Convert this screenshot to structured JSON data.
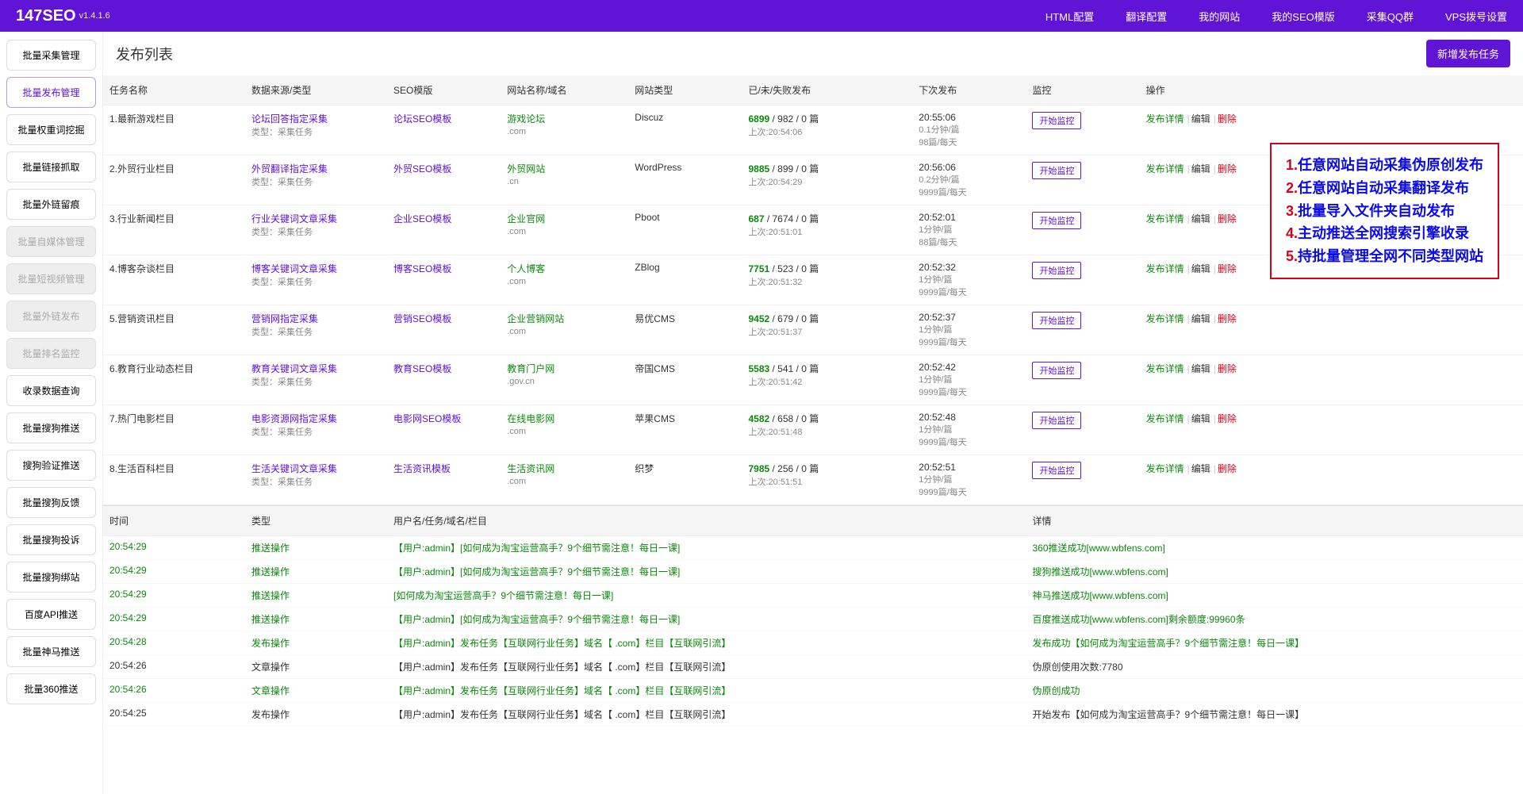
{
  "header": {
    "logo": "147SEO",
    "version": "v1.4.1.6",
    "nav": [
      "HTML配置",
      "翻译配置",
      "我的网站",
      "我的SEO模版",
      "采集QQ群",
      "VPS拨号设置"
    ]
  },
  "sidebar": [
    {
      "label": "批量采集管理",
      "state": ""
    },
    {
      "label": "批量发布管理",
      "state": "active"
    },
    {
      "label": "批量权重词挖掘",
      "state": ""
    },
    {
      "label": "批量链接抓取",
      "state": ""
    },
    {
      "label": "批量外链留痕",
      "state": ""
    },
    {
      "label": "批量自媒体管理",
      "state": "disabled"
    },
    {
      "label": "批量短视频管理",
      "state": "disabled"
    },
    {
      "label": "批量外链发布",
      "state": "disabled"
    },
    {
      "label": "批量排名监控",
      "state": "disabled"
    },
    {
      "label": "收录数据查询",
      "state": ""
    },
    {
      "label": "批量搜狗推送",
      "state": ""
    },
    {
      "label": "搜狗验证推送",
      "state": ""
    },
    {
      "label": "批量搜狗反馈",
      "state": ""
    },
    {
      "label": "批量搜狗投诉",
      "state": ""
    },
    {
      "label": "批量搜狗绑站",
      "state": ""
    },
    {
      "label": "百度API推送",
      "state": ""
    },
    {
      "label": "批量神马推送",
      "state": ""
    },
    {
      "label": "批量360推送",
      "state": ""
    }
  ],
  "page": {
    "title": "发布列表",
    "add_btn": "新增发布任务"
  },
  "taskTable": {
    "headers": [
      "任务名称",
      "数据来源/类型",
      "SEO模版",
      "网站名称/域名",
      "网站类型",
      "已/未/失败发布",
      "下次发布",
      "监控",
      "操作"
    ],
    "mon_label": "开始监控",
    "ops": {
      "detail": "发布详情",
      "edit": "编辑",
      "del": "删除"
    },
    "type_prefix": "类型：采集任务",
    "last_prefix": "上次:",
    "rows": [
      {
        "idx": "1",
        "name": "最新游戏栏目",
        "src": "论坛回答指定采集",
        "tpl": "论坛SEO模板",
        "site": "游戏论坛",
        "domain": ".com",
        "cms": "Discuz",
        "p1": "6899",
        "p2": "982",
        "p3": "0",
        "next": "20:55:06",
        "f1": "0.1分钟/篇",
        "f2": "98篇/每天",
        "last": "20:54:06"
      },
      {
        "idx": "2",
        "name": "外贸行业栏目",
        "src": "外贸翻译指定采集",
        "tpl": "外贸SEO模板",
        "site": "外贸网站",
        "domain": ".cn",
        "cms": "WordPress",
        "p1": "9885",
        "p2": "899",
        "p3": "0",
        "next": "20:56:06",
        "f1": "0.2分钟/篇",
        "f2": "9999篇/每天",
        "last": "20:54:29"
      },
      {
        "idx": "3",
        "name": "行业新闻栏目",
        "src": "行业关键词文章采集",
        "tpl": "企业SEO模板",
        "site": "企业官网",
        "domain": ".com",
        "cms": "Pboot",
        "p1": "687",
        "p2": "7674",
        "p3": "0",
        "next": "20:52:01",
        "f1": "1分钟/篇",
        "f2": "88篇/每天",
        "last": "20:51:01"
      },
      {
        "idx": "4",
        "name": "博客杂谈栏目",
        "src": "博客关键词文章采集",
        "tpl": "博客SEO模板",
        "site": "个人博客",
        "domain": ".com",
        "cms": "ZBlog",
        "p1": "7751",
        "p2": "523",
        "p3": "0",
        "next": "20:52:32",
        "f1": "1分钟/篇",
        "f2": "9999篇/每天",
        "last": "20:51:32"
      },
      {
        "idx": "5",
        "name": "营销资讯栏目",
        "src": "营销网指定采集",
        "tpl": "营销SEO模板",
        "site": "企业营销网站",
        "domain": ".com",
        "cms": "易优CMS",
        "p1": "9452",
        "p2": "679",
        "p3": "0",
        "next": "20:52:37",
        "f1": "1分钟/篇",
        "f2": "9999篇/每天",
        "last": "20:51:37"
      },
      {
        "idx": "6",
        "name": "教育行业动态栏目",
        "src": "教育关键词文章采集",
        "tpl": "教育SEO模板",
        "site": "教育门户网",
        "domain": ".gov.cn",
        "cms": "帝国CMS",
        "p1": "5583",
        "p2": "541",
        "p3": "0",
        "next": "20:52:42",
        "f1": "1分钟/篇",
        "f2": "9999篇/每天",
        "last": "20:51:42"
      },
      {
        "idx": "7",
        "name": "热门电影栏目",
        "src": "电影资源网指定采集",
        "tpl": "电影网SEO模板",
        "site": "在线电影网",
        "domain": ".com",
        "cms": "苹果CMS",
        "p1": "4582",
        "p2": "658",
        "p3": "0",
        "next": "20:52:48",
        "f1": "1分钟/篇",
        "f2": "9999篇/每天",
        "last": "20:51:48"
      },
      {
        "idx": "8",
        "name": "生活百科栏目",
        "src": "生活关键词文章采集",
        "tpl": "生活资讯模板",
        "site": "生活资讯网",
        "domain": ".com",
        "cms": "织梦",
        "p1": "7985",
        "p2": "256",
        "p3": "0",
        "next": "20:52:51",
        "f1": "1分钟/篇",
        "f2": "9999篇/每天",
        "last": "20:51:51"
      }
    ]
  },
  "logTable": {
    "headers": [
      "时间",
      "类型",
      "用户名/任务/域名/栏目",
      "详情"
    ],
    "rows": [
      {
        "t": "20:54:29",
        "type": "推送操作",
        "u": "【用户:admin】[如何成为淘宝运营高手？9个细节需注意！每日一课]",
        "d": "360推送成功[www.wbfens.com]",
        "g": true
      },
      {
        "t": "20:54:29",
        "type": "推送操作",
        "u": "【用户:admin】[如何成为淘宝运营高手？9个细节需注意！每日一课]",
        "d": "搜狗推送成功[www.wbfens.com]",
        "g": true
      },
      {
        "t": "20:54:29",
        "type": "推送操作",
        "u": "[如何成为淘宝运营高手？9个细节需注意！每日一课]",
        "d": "神马推送成功[www.wbfens.com]",
        "g": true
      },
      {
        "t": "20:54:29",
        "type": "推送操作",
        "u": "【用户:admin】[如何成为淘宝运营高手？9个细节需注意！每日一课]",
        "d": "百度推送成功[www.wbfens.com]剩余额度:99960条",
        "g": true
      },
      {
        "t": "20:54:28",
        "type": "发布操作",
        "u": "【用户:admin】发布任务【互联网行业任务】域名【            .com】栏目【互联网引流】",
        "d": "发布成功【如何成为淘宝运营高手？9个细节需注意！每日一课】",
        "g": true
      },
      {
        "t": "20:54:26",
        "type": "文章操作",
        "u": "【用户:admin】发布任务【互联网行业任务】域名【            .com】栏目【互联网引流】",
        "d": "伪原创使用次数:7780",
        "g": false
      },
      {
        "t": "20:54:26",
        "type": "文章操作",
        "u": "【用户:admin】发布任务【互联网行业任务】域名【            .com】栏目【互联网引流】",
        "d": "伪原创成功",
        "g": true
      },
      {
        "t": "20:54:25",
        "type": "发布操作",
        "u": "【用户:admin】发布任务【互联网行业任务】域名【            .com】栏目【互联网引流】",
        "d": "开始发布【如何成为淘宝运营高手？9个细节需注意！每日一课】",
        "g": false
      }
    ]
  },
  "overlay": [
    "任意网站自动采集伪原创发布",
    "任意网站自动采集翻译发布",
    "批量导入文件夹自动发布",
    "主动推送全网搜索引擎收录",
    "持批量管理全网不同类型网站"
  ]
}
